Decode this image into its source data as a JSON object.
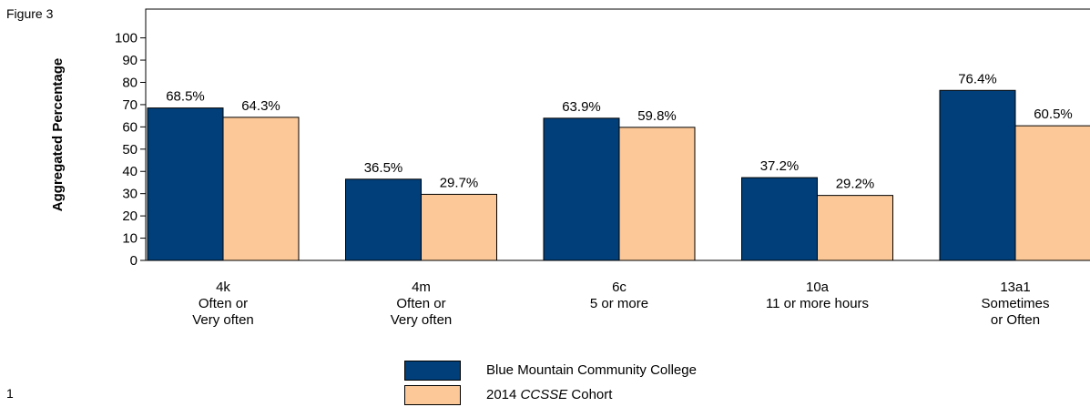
{
  "figure_label": "Figure 3",
  "page_number": "1",
  "colors": {
    "series1": "#003f7a",
    "series2": "#fcc898"
  },
  "chart_data": {
    "type": "bar",
    "title": "",
    "ylabel": "Aggregated Percentage",
    "ylim": [
      0,
      100
    ],
    "yticks": [
      "0",
      "10",
      "20",
      "30",
      "40",
      "50",
      "60",
      "70",
      "80",
      "90",
      "100"
    ],
    "categories": [
      [
        "4k",
        "Often or",
        "Very often"
      ],
      [
        "4m",
        "Often or",
        "Very often"
      ],
      [
        "6c",
        "5 or more"
      ],
      [
        "10a",
        "11 or more hours"
      ],
      [
        "13a1",
        "Sometimes",
        "or Often"
      ]
    ],
    "series": [
      {
        "name": "Blue Mountain Community College",
        "values": [
          68.5,
          36.5,
          63.9,
          37.2,
          76.4
        ],
        "labels": [
          "68.5%",
          "36.5%",
          "63.9%",
          "37.2%",
          "76.4%"
        ]
      },
      {
        "name": "2014 CCSSE Cohort",
        "values": [
          64.3,
          29.7,
          59.8,
          29.2,
          60.5
        ],
        "labels": [
          "64.3%",
          "29.7%",
          "59.8%",
          "29.2%",
          "60.5%"
        ]
      }
    ]
  },
  "legend": {
    "item1": "Blue Mountain Community College",
    "item2_prefix": "2014 ",
    "item2_italic": "CCSSE",
    "item2_suffix": " Cohort"
  }
}
